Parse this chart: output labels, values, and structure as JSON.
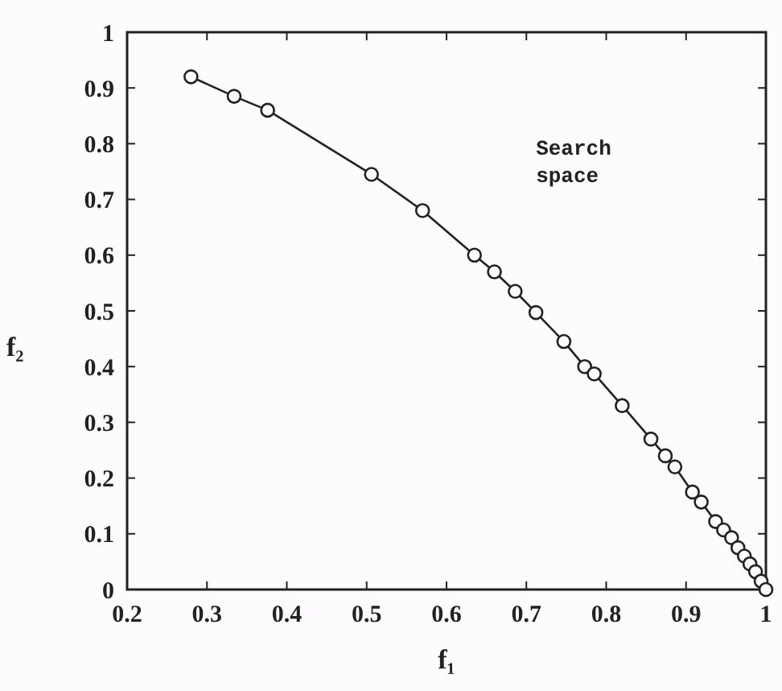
{
  "chart_data": {
    "type": "line",
    "xlabel": "f₁",
    "ylabel": "f₂",
    "annotations": [
      "Search space"
    ],
    "xlim": [
      0.2,
      1
    ],
    "ylim": [
      0,
      1
    ],
    "xticks": [
      0.2,
      0.3,
      0.4,
      0.5,
      0.6,
      0.7,
      0.8,
      0.9,
      1
    ],
    "yticks": [
      0,
      0.1,
      0.2,
      0.3,
      0.4,
      0.5,
      0.6,
      0.7,
      0.8,
      0.9,
      1
    ],
    "marker": "circle",
    "line_style": "solid",
    "grid": false,
    "x": [
      0.28,
      0.334,
      0.376,
      0.506,
      0.57,
      0.635,
      0.66,
      0.686,
      0.712,
      0.747,
      0.773,
      0.785,
      0.82,
      0.856,
      0.874,
      0.886,
      0.908,
      0.919,
      0.937,
      0.947,
      0.957,
      0.965,
      0.973,
      0.98,
      0.987,
      0.994,
      1.0
    ],
    "series": [
      {
        "color": "#222222",
        "values": [
          0.92,
          0.885,
          0.86,
          0.745,
          0.68,
          0.6,
          0.57,
          0.535,
          0.497,
          0.445,
          0.4,
          0.387,
          0.33,
          0.27,
          0.24,
          0.22,
          0.175,
          0.157,
          0.122,
          0.107,
          0.093,
          0.075,
          0.06,
          0.046,
          0.032,
          0.015,
          0.0
        ]
      }
    ]
  }
}
